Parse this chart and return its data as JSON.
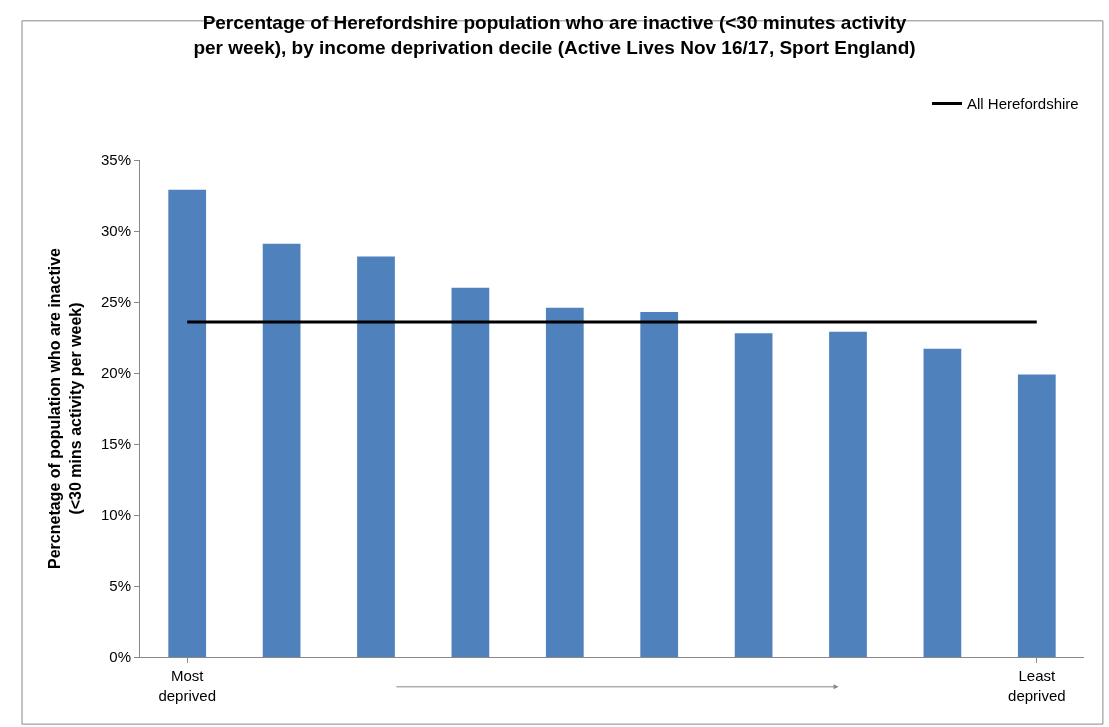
{
  "chart_data": {
    "type": "bar",
    "title": "Percentage of Herefordshire population who are inactive (<30 minutes activity per week), by income deprivation decile (Active Lives Nov 16/17, Sport England)",
    "ylabel": "Percnetage of population who are inactive (<30 mins activity per week)",
    "categories": [
      "Most deprived",
      null,
      null,
      null,
      null,
      null,
      null,
      null,
      null,
      "Least deprived"
    ],
    "series": [
      {
        "color": "#4f81bd",
        "values": [
          32.9,
          29.1,
          28.2,
          26.0,
          24.6,
          24.3,
          22.8,
          22.9,
          21.7,
          19.9
        ]
      },
      {
        "type": "line",
        "name": "All Herefordshire",
        "color": "#000000",
        "values": [
          23.6,
          23.6,
          23.6,
          23.6,
          23.6,
          23.6,
          23.6,
          23.6,
          23.6,
          23.6
        ]
      }
    ],
    "ylim": [
      0,
      35
    ],
    "yticks": [
      {
        "value": 0,
        "label": "0%"
      },
      {
        "value": 5,
        "label": "5%"
      },
      {
        "value": 10,
        "label": "10%"
      },
      {
        "value": 15,
        "label": "15%"
      },
      {
        "value": 20,
        "label": "20%"
      },
      {
        "value": 25,
        "label": "25%"
      },
      {
        "value": 30,
        "label": "30%"
      },
      {
        "value": 35,
        "label": "35%"
      }
    ],
    "legend": "top right"
  }
}
